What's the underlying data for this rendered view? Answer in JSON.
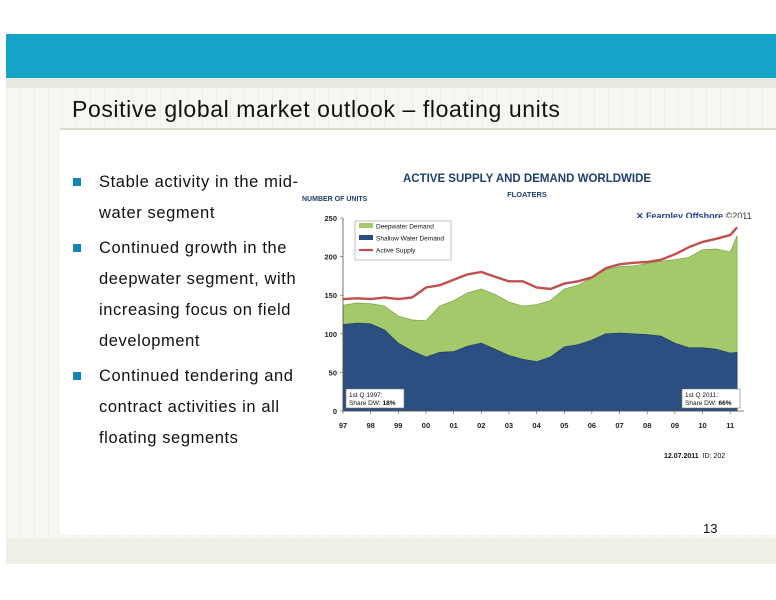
{
  "slide": {
    "title": "Positive global market outlook – floating units",
    "bullets": [
      "Stable activity in the mid-water segment",
      "Continued growth in the deepwater segment, with increasing focus on field development",
      "Continued tendering and contract activities in all floating segments"
    ],
    "page_number": "13"
  },
  "chart_data": {
    "type": "area",
    "title": "ACTIVE SUPPLY AND DEMAND WORLDWIDE",
    "subtitle": "FLOATERS",
    "ylabel": "NUMBER OF UNITS",
    "ylim": [
      0,
      250
    ],
    "yticks": [
      "0",
      "50",
      "100",
      "150",
      "200",
      "250"
    ],
    "xticks": [
      "97",
      "98",
      "99",
      "00",
      "01",
      "02",
      "03",
      "04",
      "05",
      "06",
      "07",
      "08",
      "09",
      "10",
      "11"
    ],
    "x": [
      1997.0,
      1997.5,
      1998.0,
      1998.5,
      1999.0,
      1999.5,
      2000.0,
      2000.5,
      2001.0,
      2001.5,
      2002.0,
      2002.5,
      2003.0,
      2003.5,
      2004.0,
      2004.5,
      2005.0,
      2005.5,
      2006.0,
      2006.5,
      2007.0,
      2007.5,
      2008.0,
      2008.5,
      2009.0,
      2009.5,
      2010.0,
      2010.5,
      2011.0,
      2011.25
    ],
    "series": [
      {
        "name": "Deepwater Demand",
        "color": "#a3c96a",
        "values": [
          137,
          140,
          139,
          136,
          123,
          118,
          117,
          136,
          143,
          153,
          158,
          151,
          141,
          136,
          138,
          143,
          158,
          163,
          172,
          183,
          187,
          188,
          191,
          194,
          196,
          199,
          209,
          210,
          206,
          227
        ]
      },
      {
        "name": "Shallow Water Demand",
        "color": "#2b4f80",
        "values": [
          112,
          114,
          113,
          105,
          88,
          78,
          70,
          76,
          77,
          84,
          88,
          80,
          72,
          67,
          64,
          70,
          83,
          86,
          92,
          100,
          101,
          100,
          99,
          97,
          88,
          82,
          82,
          80,
          75,
          76
        ]
      },
      {
        "name": "Active Supply",
        "color": "#c0504d",
        "values": [
          145,
          146,
          145,
          147,
          145,
          147,
          160,
          163,
          170,
          177,
          180,
          174,
          168,
          168,
          160,
          158,
          165,
          168,
          173,
          185,
          190,
          192,
          193,
          196,
          203,
          212,
          219,
          223,
          228,
          238
        ]
      }
    ],
    "annotations": {
      "left": {
        "line1": "1st Q 1997:",
        "line2_prefix": "Share DW: ",
        "line2_value": "18%"
      },
      "right": {
        "line1": "1st Q 2011:",
        "line2_prefix": "Share DW: ",
        "line2_value": "66%"
      }
    },
    "legend_position": "top-left",
    "grid": false
  },
  "logo": {
    "name": "Fearnley Offshore",
    "year": "©2011"
  },
  "note": {
    "date": "12.07.2011",
    "id": "ID: 202"
  }
}
